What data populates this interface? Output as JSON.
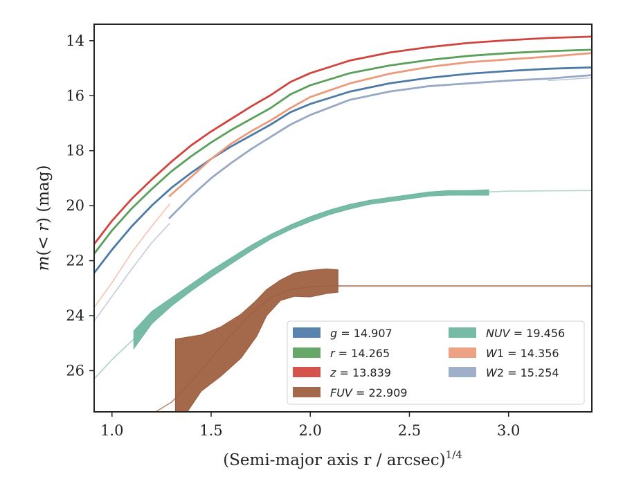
{
  "chart_data": {
    "type": "line",
    "xlabel": "(Semi-major axis r / arcsec)",
    "xlabel_exponent": "1/4",
    "ylabel": "m(< r) (mag)",
    "xlim": [
      0.91,
      3.42
    ],
    "ylim": [
      27.5,
      13.4
    ],
    "y_inverted": true,
    "x_ticks": [
      1.0,
      1.5,
      2.0,
      2.5,
      3.0
    ],
    "x_tick_labels": [
      "1.0",
      "1.5",
      "2.0",
      "2.5",
      "3.0"
    ],
    "y_ticks": [
      14,
      16,
      18,
      20,
      22,
      24,
      26
    ],
    "y_tick_labels": [
      "14",
      "16",
      "18",
      "20",
      "22",
      "24",
      "26"
    ],
    "grid": false,
    "legend_position": "bottom-right",
    "legend_columns": 2,
    "series": [
      {
        "name": "g = 14.907",
        "color": "#4c7aa6",
        "band_width": 0.12,
        "points": [
          [
            0.91,
            22.45
          ],
          [
            1.0,
            21.6
          ],
          [
            1.1,
            20.75
          ],
          [
            1.2,
            20.0
          ],
          [
            1.3,
            19.35
          ],
          [
            1.4,
            18.8
          ],
          [
            1.5,
            18.3
          ],
          [
            1.6,
            17.85
          ],
          [
            1.7,
            17.45
          ],
          [
            1.8,
            17.05
          ],
          [
            1.9,
            16.6
          ],
          [
            2.0,
            16.3
          ],
          [
            2.2,
            15.85
          ],
          [
            2.4,
            15.55
          ],
          [
            2.6,
            15.35
          ],
          [
            2.8,
            15.2
          ],
          [
            3.0,
            15.1
          ],
          [
            3.2,
            15.02
          ],
          [
            3.42,
            14.97
          ]
        ]
      },
      {
        "name": "r = 14.265",
        "color": "#5aa05a",
        "band_width": 0.12,
        "points": [
          [
            0.91,
            21.75
          ],
          [
            1.0,
            20.9
          ],
          [
            1.1,
            20.1
          ],
          [
            1.2,
            19.4
          ],
          [
            1.3,
            18.75
          ],
          [
            1.4,
            18.2
          ],
          [
            1.5,
            17.7
          ],
          [
            1.6,
            17.25
          ],
          [
            1.7,
            16.85
          ],
          [
            1.8,
            16.45
          ],
          [
            1.9,
            15.95
          ],
          [
            2.0,
            15.62
          ],
          [
            2.2,
            15.18
          ],
          [
            2.4,
            14.9
          ],
          [
            2.6,
            14.7
          ],
          [
            2.8,
            14.55
          ],
          [
            3.0,
            14.45
          ],
          [
            3.2,
            14.38
          ],
          [
            3.42,
            14.33
          ]
        ]
      },
      {
        "name": "z = 13.839",
        "color": "#d0443e",
        "band_width": 0.12,
        "points": [
          [
            0.91,
            21.4
          ],
          [
            1.0,
            20.55
          ],
          [
            1.1,
            19.75
          ],
          [
            1.2,
            19.05
          ],
          [
            1.3,
            18.4
          ],
          [
            1.4,
            17.8
          ],
          [
            1.5,
            17.3
          ],
          [
            1.6,
            16.85
          ],
          [
            1.7,
            16.4
          ],
          [
            1.8,
            15.98
          ],
          [
            1.9,
            15.5
          ],
          [
            2.0,
            15.18
          ],
          [
            2.2,
            14.72
          ],
          [
            2.4,
            14.43
          ],
          [
            2.6,
            14.23
          ],
          [
            2.8,
            14.08
          ],
          [
            3.0,
            13.98
          ],
          [
            3.2,
            13.9
          ],
          [
            3.42,
            13.85
          ]
        ]
      },
      {
        "name": "FUV = 22.909",
        "color": "#9c5c3c",
        "band_width": 0,
        "points": [],
        "band": {
          "lower": [
            [
              1.32,
              24.85
            ],
            [
              1.45,
              24.7
            ],
            [
              1.55,
              24.4
            ],
            [
              1.65,
              23.95
            ],
            [
              1.72,
              23.5
            ],
            [
              1.78,
              23.05
            ],
            [
              1.85,
              22.7
            ],
            [
              1.92,
              22.45
            ],
            [
              2.0,
              22.35
            ],
            [
              2.08,
              22.3
            ],
            [
              2.14,
              22.33
            ]
          ],
          "upper": [
            [
              1.32,
              27.5
            ],
            [
              1.38,
              27.5
            ],
            [
              1.45,
              26.75
            ],
            [
              1.55,
              26.2
            ],
            [
              1.65,
              25.55
            ],
            [
              1.73,
              24.75
            ],
            [
              1.78,
              24.0
            ],
            [
              1.85,
              23.45
            ],
            [
              1.92,
              23.3
            ],
            [
              2.0,
              23.32
            ],
            [
              2.08,
              23.2
            ],
            [
              2.14,
              23.15
            ]
          ]
        },
        "extra_lines": [
          {
            "points": [
              [
                1.22,
                27.5
              ],
              [
                1.3,
                27.15
              ],
              [
                1.4,
                26.4
              ],
              [
                1.5,
                25.55
              ],
              [
                1.6,
                24.7
              ],
              [
                1.7,
                23.95
              ],
              [
                1.8,
                23.35
              ],
              [
                1.9,
                23.05
              ],
              [
                2.0,
                22.95
              ],
              [
                2.1,
                22.92
              ],
              [
                2.14,
                22.92
              ]
            ],
            "opacity": 0.7,
            "width": 1.6
          },
          {
            "points": [
              [
                2.14,
                22.92
              ],
              [
                3.42,
                22.92
              ]
            ],
            "opacity": 0.65,
            "width": 2.2
          }
        ]
      },
      {
        "name": "NUV = 19.456",
        "color": "#6bb5a0",
        "band_width": 0,
        "points": [],
        "band": {
          "lower": [
            [
              1.11,
              24.55
            ],
            [
              1.2,
              23.85
            ],
            [
              1.3,
              23.35
            ],
            [
              1.4,
              22.85
            ],
            [
              1.5,
              22.35
            ],
            [
              1.6,
              21.9
            ],
            [
              1.7,
              21.45
            ],
            [
              1.8,
              21.05
            ],
            [
              1.9,
              20.7
            ],
            [
              2.0,
              20.4
            ],
            [
              2.1,
              20.15
            ],
            [
              2.2,
              19.95
            ],
            [
              2.3,
              19.8
            ],
            [
              2.4,
              19.7
            ],
            [
              2.5,
              19.6
            ],
            [
              2.6,
              19.5
            ],
            [
              2.7,
              19.45
            ],
            [
              2.8,
              19.45
            ],
            [
              2.9,
              19.42
            ]
          ],
          "upper": [
            [
              1.11,
              25.2
            ],
            [
              1.2,
              24.3
            ],
            [
              1.3,
              23.65
            ],
            [
              1.4,
              23.1
            ],
            [
              1.5,
              22.6
            ],
            [
              1.6,
              22.12
            ],
            [
              1.7,
              21.65
            ],
            [
              1.8,
              21.22
            ],
            [
              1.9,
              20.87
            ],
            [
              2.0,
              20.58
            ],
            [
              2.1,
              20.32
            ],
            [
              2.2,
              20.12
            ],
            [
              2.3,
              19.95
            ],
            [
              2.4,
              19.85
            ],
            [
              2.5,
              19.75
            ],
            [
              2.6,
              19.65
            ],
            [
              2.7,
              19.62
            ],
            [
              2.8,
              19.62
            ],
            [
              2.9,
              19.62
            ]
          ]
        },
        "extra_lines": [
          {
            "points": [
              [
                0.91,
                26.3
              ],
              [
                1.0,
                25.6
              ],
              [
                1.11,
                24.85
              ]
            ],
            "opacity": 0.6,
            "width": 1.6
          },
          {
            "points": [
              [
                2.9,
                19.5
              ],
              [
                3.0,
                19.47
              ],
              [
                3.2,
                19.46
              ],
              [
                3.42,
                19.45
              ]
            ],
            "opacity": 0.55,
            "width": 1.6
          }
        ]
      },
      {
        "name": "W1 = 14.356",
        "color": "#ec9a7c",
        "band_width": 0.1,
        "points": [
          [
            1.29,
            19.65
          ],
          [
            1.4,
            18.95
          ],
          [
            1.5,
            18.3
          ],
          [
            1.6,
            17.75
          ],
          [
            1.7,
            17.3
          ],
          [
            1.8,
            16.9
          ],
          [
            1.9,
            16.45
          ],
          [
            2.0,
            16.05
          ],
          [
            2.2,
            15.55
          ],
          [
            2.4,
            15.2
          ],
          [
            2.6,
            14.95
          ],
          [
            2.8,
            14.78
          ],
          [
            3.0,
            14.68
          ],
          [
            3.2,
            14.58
          ],
          [
            3.42,
            14.45
          ]
        ],
        "extra_lines": [
          {
            "points": [
              [
                0.91,
                23.7
              ],
              [
                1.0,
                22.8
              ],
              [
                1.1,
                21.7
              ],
              [
                1.2,
                20.75
              ],
              [
                1.29,
                19.95
              ]
            ],
            "opacity": 0.6,
            "width": 1.6
          }
        ]
      },
      {
        "name": "W2 = 15.254",
        "color": "#97a8c6",
        "band_width": 0.12,
        "points": [
          [
            1.29,
            20.45
          ],
          [
            1.4,
            19.65
          ],
          [
            1.5,
            19.0
          ],
          [
            1.6,
            18.45
          ],
          [
            1.7,
            17.95
          ],
          [
            1.8,
            17.5
          ],
          [
            1.9,
            17.05
          ],
          [
            2.0,
            16.7
          ],
          [
            2.2,
            16.15
          ],
          [
            2.4,
            15.85
          ],
          [
            2.6,
            15.65
          ],
          [
            2.8,
            15.55
          ],
          [
            3.0,
            15.45
          ],
          [
            3.2,
            15.38
          ],
          [
            3.42,
            15.25
          ]
        ],
        "extra_lines": [
          {
            "points": [
              [
                0.91,
                24.2
              ],
              [
                1.0,
                23.3
              ],
              [
                1.1,
                22.3
              ],
              [
                1.2,
                21.35
              ],
              [
                1.29,
                20.65
              ]
            ],
            "opacity": 0.6,
            "width": 1.6
          },
          {
            "points": [
              [
                3.2,
                15.45
              ],
              [
                3.42,
                15.35
              ]
            ],
            "opacity": 0.7,
            "width": 1.4
          }
        ]
      }
    ],
    "legend": {
      "col1": [
        "g = 14.907",
        "r = 14.265",
        "z = 13.839",
        "FUV = 22.909"
      ],
      "col2": [
        "NUV = 19.456",
        "W1 = 14.356",
        "W2 = 15.254"
      ]
    }
  }
}
